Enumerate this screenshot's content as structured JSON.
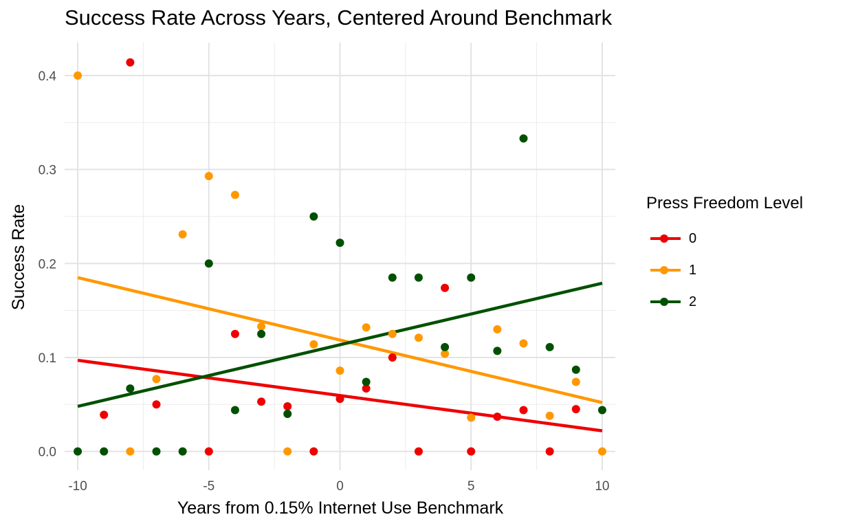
{
  "chart_data": {
    "type": "scatter",
    "title": "Success Rate Across Years, Centered Around Benchmark",
    "xlabel": "Years from 0.15% Internet Use Benchmark",
    "ylabel": "Success Rate",
    "xlim": [
      -10.5,
      10.5
    ],
    "ylim": [
      -0.02,
      0.435
    ],
    "x_ticks": [
      -10,
      -5,
      0,
      5,
      10
    ],
    "x_tick_labels": [
      "-10",
      "-5",
      "0",
      "5",
      "10"
    ],
    "y_ticks": [
      0.0,
      0.1,
      0.2,
      0.3,
      0.4
    ],
    "y_tick_labels": [
      "0.0",
      "0.1",
      "0.2",
      "0.3",
      "0.4"
    ],
    "grid": true,
    "legend": {
      "title": "Press Freedom Level",
      "placement": "right"
    },
    "series": [
      {
        "name": "0",
        "color": "#ee0000",
        "points": [
          [
            -9,
            0.039
          ],
          [
            -8,
            0.414
          ],
          [
            -7,
            0.05
          ],
          [
            -5,
            0.0
          ],
          [
            -4,
            0.125
          ],
          [
            -3,
            0.053
          ],
          [
            -2,
            0.048
          ],
          [
            -1,
            0.0
          ],
          [
            0,
            0.056
          ],
          [
            1,
            0.067
          ],
          [
            2,
            0.1
          ],
          [
            3,
            0.0
          ],
          [
            4,
            0.174
          ],
          [
            5,
            0.0
          ],
          [
            6,
            0.037
          ],
          [
            7,
            0.044
          ],
          [
            8,
            0.0
          ],
          [
            9,
            0.045
          ]
        ],
        "trend": [
          [
            -10,
            0.097
          ],
          [
            10,
            0.022
          ]
        ]
      },
      {
        "name": "1",
        "color": "#ff9800",
        "points": [
          [
            -10,
            0.4
          ],
          [
            -8,
            0.0
          ],
          [
            -7,
            0.077
          ],
          [
            -6,
            0.231
          ],
          [
            -5,
            0.293
          ],
          [
            -4,
            0.273
          ],
          [
            -3,
            0.133
          ],
          [
            -2,
            0.0
          ],
          [
            -1,
            0.114
          ],
          [
            0,
            0.086
          ],
          [
            1,
            0.132
          ],
          [
            2,
            0.125
          ],
          [
            3,
            0.121
          ],
          [
            4,
            0.104
          ],
          [
            5,
            0.036
          ],
          [
            6,
            0.13
          ],
          [
            7,
            0.115
          ],
          [
            8,
            0.038
          ],
          [
            9,
            0.074
          ],
          [
            10,
            0.0
          ]
        ],
        "trend": [
          [
            -10,
            0.185
          ],
          [
            10,
            0.052
          ]
        ]
      },
      {
        "name": "2",
        "color": "#005000",
        "points": [
          [
            -10,
            0.0
          ],
          [
            -9,
            0.0
          ],
          [
            -8,
            0.067
          ],
          [
            -7,
            0.0
          ],
          [
            -6,
            0.0
          ],
          [
            -5,
            0.2
          ],
          [
            -4,
            0.044
          ],
          [
            -3,
            0.125
          ],
          [
            -2,
            0.04
          ],
          [
            -1,
            0.25
          ],
          [
            0,
            0.222
          ],
          [
            1,
            0.074
          ],
          [
            2,
            0.185
          ],
          [
            3,
            0.185
          ],
          [
            4,
            0.111
          ],
          [
            5,
            0.185
          ],
          [
            6,
            0.107
          ],
          [
            7,
            0.333
          ],
          [
            8,
            0.111
          ],
          [
            9,
            0.087
          ],
          [
            10,
            0.044
          ]
        ],
        "trend": [
          [
            -10,
            0.048
          ],
          [
            10,
            0.179
          ]
        ]
      }
    ]
  }
}
